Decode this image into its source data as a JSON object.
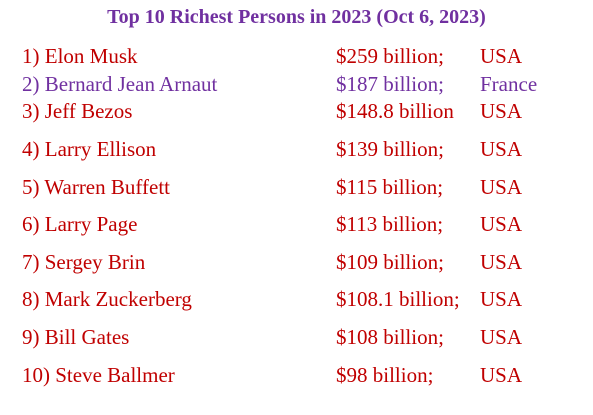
{
  "header": {
    "title": "Top 10 Richest Persons in 2023 (Oct 6, 2023)"
  },
  "rows": [
    {
      "name": "1) Elon Musk",
      "worth": "$259 billion;",
      "country": "USA",
      "color": "#c00000"
    },
    {
      "name": "2) Bernard Jean Arnaut",
      "worth": "$187 billion;",
      "country": "France",
      "color": "#7030a0"
    },
    {
      "name": "3) Jeff Bezos",
      "worth": "$148.8 billion",
      "country": "USA",
      "color": "#c00000"
    },
    {
      "name": "4) Larry Ellison",
      "worth": "$139 billion;",
      "country": "USA",
      "color": "#c00000"
    },
    {
      "name": "5) Warren Buffett",
      "worth": "$115 billion;",
      "country": "USA",
      "color": "#c00000"
    },
    {
      "name": "6) Larry Page",
      "worth": "$113 billion;",
      "country": "USA",
      "color": "#c00000"
    },
    {
      "name": "7) Sergey Brin",
      "worth": "$109 billion;",
      "country": "USA",
      "color": "#c00000"
    },
    {
      "name": "8) Mark Zuckerberg",
      "worth": "$108.1 billion;",
      "country": "USA",
      "color": "#c00000"
    },
    {
      "name": "9) Bill Gates",
      "worth": "$108 billion;",
      "country": "USA",
      "color": "#c00000"
    },
    {
      "name": "10) Steve Ballmer",
      "worth": "$98 billion;",
      "country": "USA",
      "color": "#c00000"
    }
  ]
}
